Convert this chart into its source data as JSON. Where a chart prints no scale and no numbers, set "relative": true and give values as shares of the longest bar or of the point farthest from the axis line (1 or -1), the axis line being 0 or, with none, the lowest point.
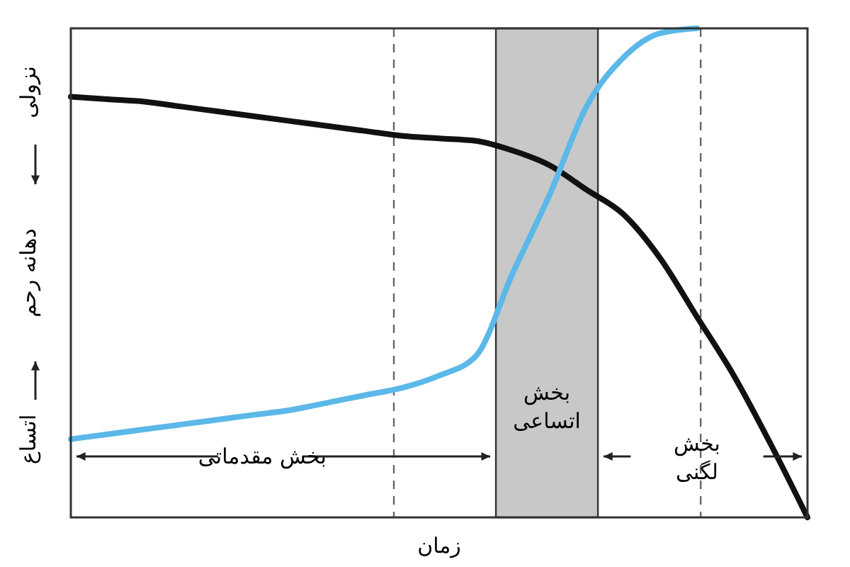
{
  "chart_data": {
    "type": "line",
    "relative": true,
    "xlabel": "زمان",
    "ylabel": "دهانه رحم",
    "categories": [
      null,
      null,
      null,
      null,
      null,
      null,
      null,
      null,
      null,
      null,
      null,
      null,
      null,
      null,
      null,
      null,
      null,
      null,
      null,
      null,
      null
    ],
    "series": [
      {
        "color": "#111111",
        "values": [
          0.86,
          0.855,
          0.85,
          0.84,
          0.83,
          0.82,
          0.81,
          0.8,
          0.79,
          0.78,
          0.775,
          0.77,
          0.75,
          0.72,
          0.67,
          0.62,
          0.53,
          0.41,
          0.29,
          0.15,
          0
        ]
      },
      {
        "color": "#5bb8e8",
        "values": [
          0.16,
          0.17,
          0.18,
          0.19,
          0.2,
          0.21,
          0.22,
          0.235,
          0.25,
          0.265,
          0.29,
          0.33,
          0.5,
          0.66,
          0.84,
          0.94,
          0.99,
          1,
          null,
          null,
          null
        ]
      }
    ],
    "annotations": [
      "نزولی",
      "اتساع",
      "بخش مقدماتی",
      "بخش لگنی",
      "بخش اتساعی"
    ],
    "line_style": "solid"
  }
}
